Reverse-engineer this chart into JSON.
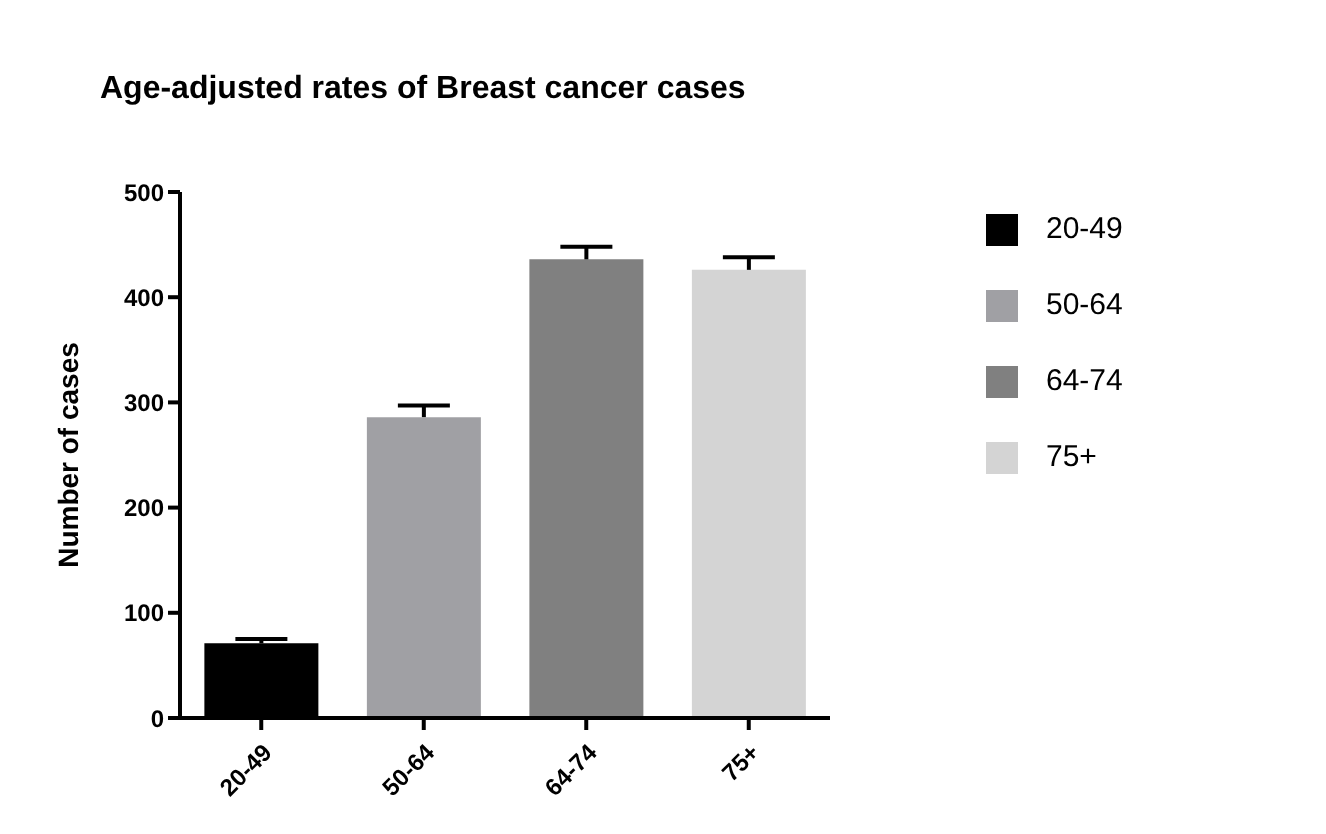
{
  "chart_data": {
    "type": "bar",
    "title": "Age-adjusted rates of Breast cancer cases",
    "ylabel": "Number of cases",
    "categories": [
      "20-49",
      "50-64",
      "64-74",
      "75+"
    ],
    "series": [
      {
        "name": "20-49",
        "color": "#000000",
        "values": [
          71,
          null,
          null,
          null
        ],
        "errors": [
          4,
          null,
          null,
          null
        ]
      },
      {
        "name": "50-64",
        "color": "#a0a0a4",
        "values": [
          null,
          286,
          null,
          null
        ],
        "errors": [
          null,
          11,
          null,
          null
        ]
      },
      {
        "name": "64-74",
        "color": "#808080",
        "values": [
          null,
          null,
          436,
          null
        ],
        "errors": [
          null,
          null,
          12,
          null
        ]
      },
      {
        "name": "75+",
        "color": "#d4d4d4",
        "values": [
          null,
          null,
          null,
          426
        ],
        "errors": [
          null,
          null,
          null,
          12
        ]
      }
    ],
    "ylim": [
      0,
      500
    ],
    "yticks": [
      0,
      100,
      200,
      300,
      400,
      500
    ],
    "grid": false,
    "legend": "right"
  }
}
